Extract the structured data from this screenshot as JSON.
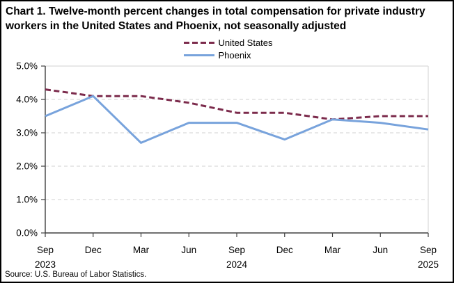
{
  "title": "Chart 1. Twelve-month percent changes in total compensation for private industry workers in the United States and Phoenix, not seasonally adjusted",
  "source": "Source: U.S. Bureau of Labor Statistics.",
  "legend": [
    {
      "label": "United States",
      "color": "#7C2B4C",
      "style": "dashed"
    },
    {
      "label": "Phoenix",
      "color": "#78A3DC",
      "style": "solid"
    }
  ],
  "colors": {
    "united_states": "#7C2B4C",
    "phoenix": "#78A3DC",
    "gridline": "#D9D9D9",
    "axis": "#404040",
    "plot_border": "#D9D9D9"
  },
  "chart_data": {
    "type": "line",
    "categories": [
      "Sep 2023",
      "Dec 2023",
      "Mar 2024",
      "Jun 2024",
      "Sep 2024",
      "Dec 2024",
      "Mar 2025",
      "Jun 2025",
      "Sep 2025"
    ],
    "x_tick_lines": [
      [
        "Sep",
        "2023"
      ],
      [
        "Dec"
      ],
      [
        "Mar"
      ],
      [
        "Jun"
      ],
      [
        "Sep",
        "2024"
      ],
      [
        "Dec"
      ],
      [
        "Mar"
      ],
      [
        "Jun"
      ],
      [
        "Sep",
        "2025"
      ]
    ],
    "series": [
      {
        "name": "United States",
        "values": [
          4.3,
          4.1,
          4.1,
          3.9,
          3.6,
          3.6,
          3.4,
          3.5,
          3.5
        ],
        "color": "#7C2B4C",
        "style": "dashed"
      },
      {
        "name": "Phoenix",
        "values": [
          3.5,
          4.1,
          2.7,
          3.3,
          3.3,
          2.8,
          3.4,
          3.3,
          3.1
        ],
        "color": "#78A3DC",
        "style": "solid"
      }
    ],
    "y_ticks": [
      "0.0%",
      "1.0%",
      "2.0%",
      "3.0%",
      "4.0%",
      "5.0%"
    ],
    "ylim": [
      0,
      5
    ],
    "grid": true,
    "legend_position": "top-center",
    "title": "Chart 1. Twelve-month percent changes in total compensation for private industry workers in the United States and Phoenix, not seasonally adjusted",
    "xlabel": "",
    "ylabel": ""
  }
}
